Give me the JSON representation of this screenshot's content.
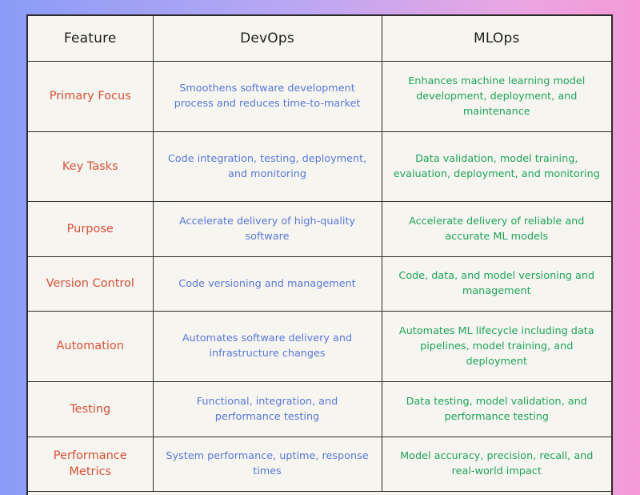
{
  "table": {
    "headers": [
      "Feature",
      "DevOps",
      "MLOps"
    ],
    "rows": [
      {
        "feature": "Primary Focus",
        "devops": "Smoothens software development process and reduces time-to-market",
        "mlops": "Enhances machine learning model development, deployment, and maintenance"
      },
      {
        "feature": "Key Tasks",
        "devops": "Code integration, testing, deployment, and monitoring",
        "mlops": "Data validation, model training, evaluation, deployment, and monitoring"
      },
      {
        "feature": "Purpose",
        "devops": "Accelerate delivery of high-quality software",
        "mlops": "Accelerate delivery of reliable and accurate ML models"
      },
      {
        "feature": "Version Control",
        "devops": "Code versioning and management",
        "mlops": "Code, data, and model versioning and management"
      },
      {
        "feature": "Automation",
        "devops": "Automates software delivery and infrastructure changes",
        "mlops": "Automates ML lifecycle including data pipelines, model training, and deployment"
      },
      {
        "feature": "Testing",
        "devops": "Functional, integration, and performance testing",
        "mlops": "Data testing, model validation, and performance testing"
      },
      {
        "feature": "Performance Metrics",
        "devops": "System performance, uptime, response times",
        "mlops": "Model accuracy, precision, recall, and real-world impact"
      }
    ]
  },
  "colors": {
    "feature": "#d8513a",
    "devops": "#5a78dd",
    "mlops": "#1fa55a"
  }
}
